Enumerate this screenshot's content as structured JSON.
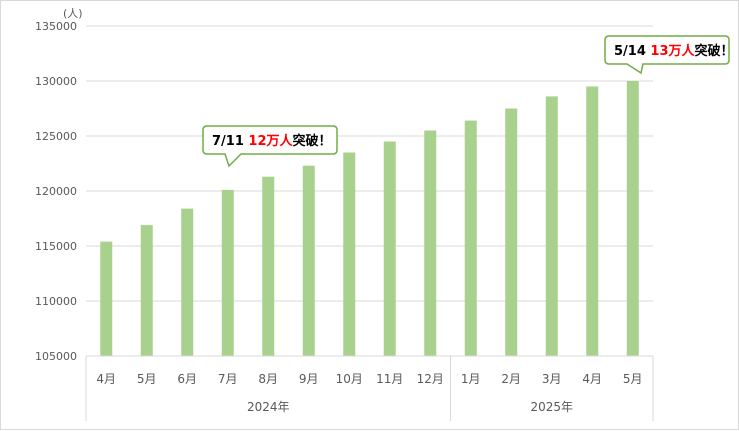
{
  "chart_data": {
    "type": "bar",
    "unit_label": "(人)",
    "categories": [
      "4月",
      "5月",
      "6月",
      "7月",
      "8月",
      "9月",
      "10月",
      "11月",
      "12月",
      "1月",
      "2月",
      "3月",
      "4月",
      "5月"
    ],
    "years": [
      {
        "label": "2024年",
        "span": 9
      },
      {
        "label": "2025年",
        "span": 5
      }
    ],
    "values": [
      115400,
      116900,
      118400,
      120100,
      121300,
      122300,
      123500,
      124500,
      125500,
      126400,
      127500,
      128600,
      129500,
      130000
    ],
    "ylim": [
      105000,
      135000
    ],
    "yticks": [
      "105000",
      "110000",
      "115000",
      "120000",
      "125000",
      "130000",
      "135000"
    ],
    "grid": true,
    "bar_color": "#a9d18e",
    "annotations": [
      {
        "date": "7/11",
        "highlight": "12万人",
        "suffix": "突破！",
        "category_index": 3
      },
      {
        "date": "5/14",
        "highlight": "13万人",
        "suffix": "突破！",
        "category_index": 13
      }
    ],
    "callout_border_color": "#70ad47",
    "highlight_color": "#ff0000"
  }
}
